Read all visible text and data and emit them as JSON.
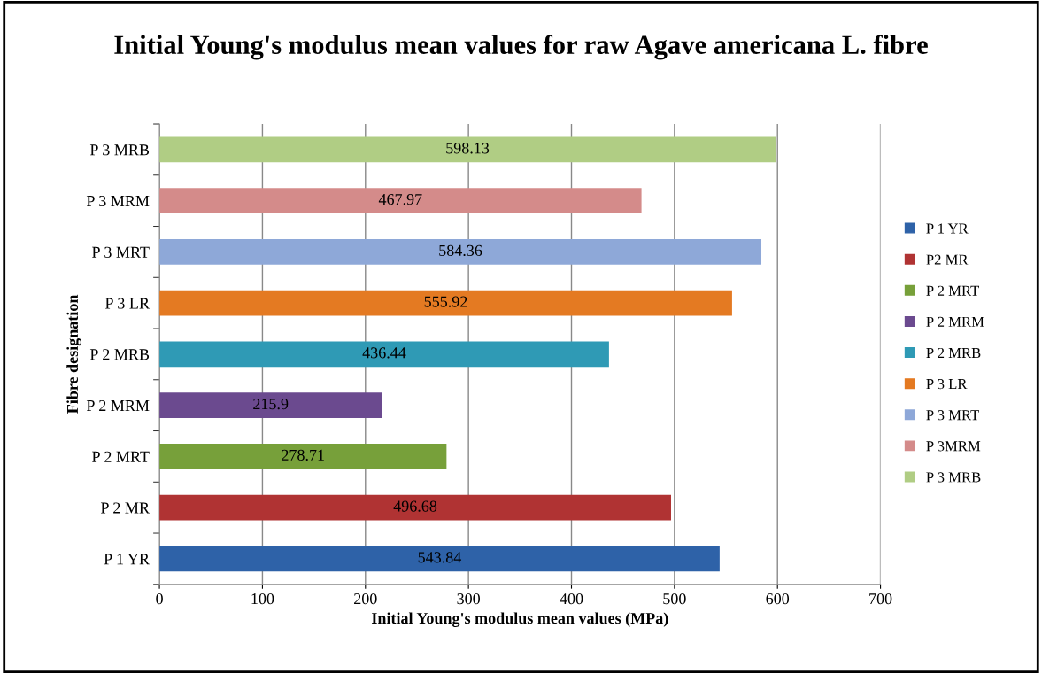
{
  "chart_data": {
    "type": "bar",
    "orientation": "horizontal",
    "title": "Initial Young's modulus mean values for raw Agave americana L. fibre",
    "xlabel": "Initial Young's modulus mean values (MPa)",
    "ylabel": "Fibre designation",
    "categories": [
      "P 3 MRB",
      "P 3 MRM",
      "P 3 MRT",
      "P 3 LR",
      "P 2 MRB",
      "P 2 MRM",
      "P 2 MRT",
      "P 2 MR",
      "P 1 YR"
    ],
    "series": [
      {
        "name": "P 1 YR",
        "color": "#2e62a8",
        "values": [
          null,
          null,
          null,
          null,
          null,
          null,
          null,
          null,
          543.84
        ]
      },
      {
        "name": "P2 MR",
        "color": "#b03333",
        "values": [
          null,
          null,
          null,
          null,
          null,
          null,
          null,
          496.68,
          null
        ]
      },
      {
        "name": "P 2 MRT",
        "color": "#77a03a",
        "values": [
          null,
          null,
          null,
          null,
          null,
          null,
          278.71,
          null,
          null
        ]
      },
      {
        "name": "P 2 MRM",
        "color": "#6b4a8f",
        "values": [
          null,
          null,
          null,
          null,
          null,
          215.9,
          null,
          null,
          null
        ]
      },
      {
        "name": "P 2 MRB",
        "color": "#2f9ab5",
        "values": [
          null,
          null,
          null,
          null,
          436.44,
          null,
          null,
          null,
          null
        ]
      },
      {
        "name": "P 3 LR",
        "color": "#e47a22",
        "values": [
          null,
          null,
          null,
          555.92,
          null,
          null,
          null,
          null,
          null
        ]
      },
      {
        "name": "P 3 MRT",
        "color": "#8ea8d8",
        "values": [
          null,
          null,
          584.36,
          null,
          null,
          null,
          null,
          null,
          null
        ]
      },
      {
        "name": "P 3MRM",
        "color": "#d48b8a",
        "values": [
          null,
          467.97,
          null,
          null,
          null,
          null,
          null,
          null,
          null
        ]
      },
      {
        "name": "P 3 MRB",
        "color": "#b0cd84",
        "values": [
          598.13,
          null,
          null,
          null,
          null,
          null,
          null,
          null,
          null
        ]
      }
    ],
    "xlim": [
      0,
      700
    ],
    "xticks": [
      0,
      100,
      200,
      300,
      400,
      500,
      600,
      700
    ],
    "grid": "x",
    "legend": "right",
    "data_labels": true
  }
}
